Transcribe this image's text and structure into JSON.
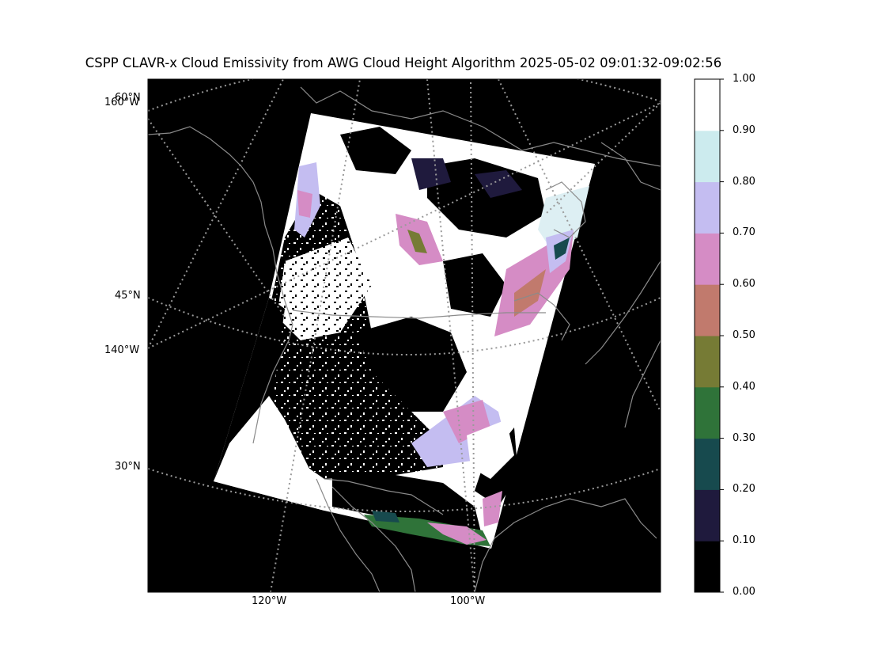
{
  "title": "CSPP CLAVR-x Cloud Emissivity from AWG Cloud Height Algorithm 2025-05-02 09:01:32-09:02:56",
  "lat_labels": [
    "60°N",
    "45°N",
    "30°N"
  ],
  "lon_left_labels": [
    "160°W",
    "140°W"
  ],
  "lon_bottom_labels": [
    "120°W",
    "100°W"
  ],
  "colorbar": {
    "ticks": [
      "1.00",
      "0.90",
      "0.80",
      "0.70",
      "0.60",
      "0.50",
      "0.40",
      "0.30",
      "0.20",
      "0.10",
      "0.00"
    ],
    "colors_bottom_to_top": [
      "#000000",
      "#1f1a3d",
      "#174a4e",
      "#2f7339",
      "#767b35",
      "#c17a6d",
      "#d58cc5",
      "#c4bdf1",
      "#ccebee",
      "#ffffff"
    ]
  },
  "colors": {
    "background": "#000000",
    "graticule": "#9a9a9a",
    "coastline": "#8a8a8a",
    "cloud_white": "#ffffff",
    "cloud_pale": "#ddeff3"
  }
}
